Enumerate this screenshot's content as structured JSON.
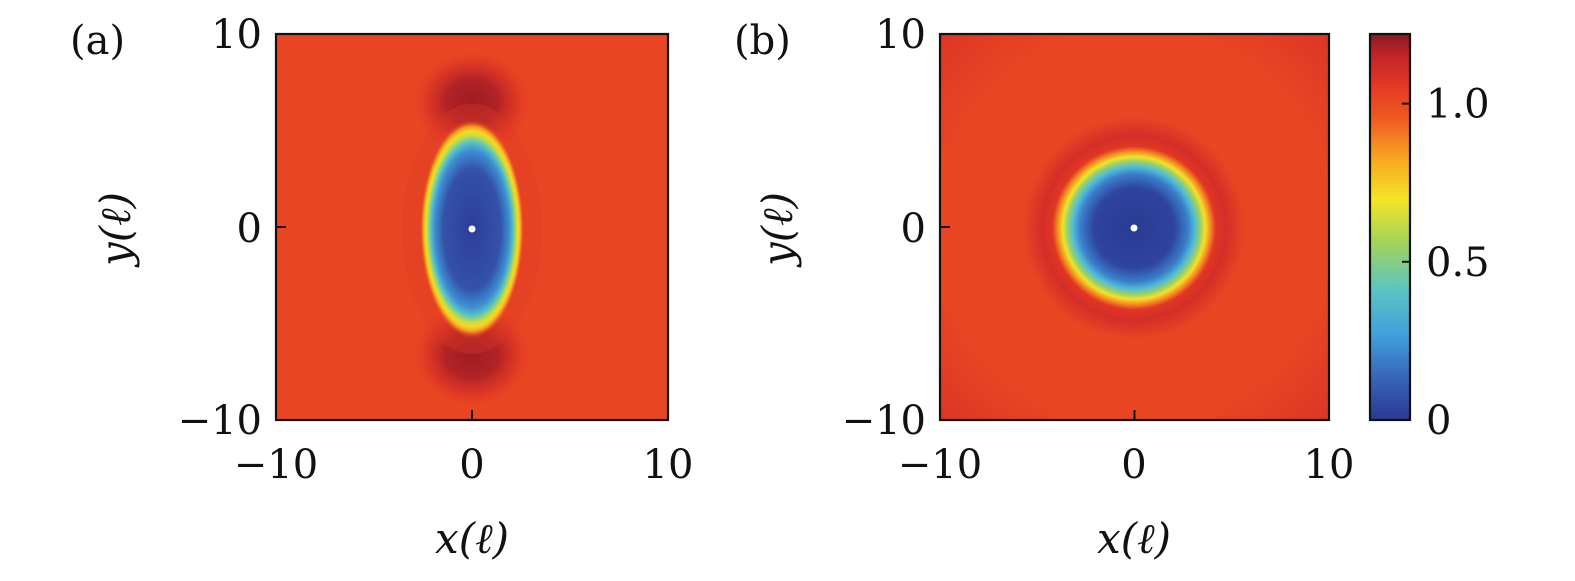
{
  "chart_data": [
    {
      "type": "heatmap",
      "panel_label": "(a)",
      "xlabel": "x(ℓ)",
      "ylabel": "y(ℓ)",
      "xlim": [
        -10,
        10
      ],
      "ylim": [
        -10,
        10
      ],
      "xticks": [
        -10,
        0,
        10
      ],
      "yticks": [
        -10,
        0,
        10
      ],
      "xtick_labels": [
        "−10",
        "0",
        "10"
      ],
      "ytick_labels": [
        "−10",
        "0",
        "10"
      ],
      "field": {
        "shape": "ellipse",
        "center": [
          0,
          0
        ],
        "semi_axis_x": 2.1,
        "semi_axis_y": 4.7,
        "core_value": 0.1,
        "background_value": 1.0,
        "peak_value": 1.22,
        "peak_centers": [
          [
            0,
            6.5
          ],
          [
            0,
            -6.5
          ]
        ]
      },
      "center_marker": {
        "x": 0,
        "y": 0,
        "color": "#ffffff"
      }
    },
    {
      "type": "heatmap",
      "panel_label": "(b)",
      "xlabel": "x(ℓ)",
      "ylabel": "y(ℓ)",
      "xlim": [
        -10,
        10
      ],
      "ylim": [
        -10,
        10
      ],
      "xticks": [
        -10,
        0,
        10
      ],
      "yticks": [
        -10,
        0,
        10
      ],
      "xtick_labels": [
        "−10",
        "0",
        "10"
      ],
      "ytick_labels": [
        "−10",
        "0",
        "10"
      ],
      "field": {
        "shape": "circle",
        "center": [
          0,
          0
        ],
        "radius": 3.3,
        "core_value": 0.1,
        "background_value": 1.02,
        "ring_value": 1.1,
        "ring_radius": 4.8,
        "corner_value": 1.08
      },
      "center_marker": {
        "x": 0,
        "y": 0,
        "color": "#ffffff"
      }
    }
  ],
  "colorbar": {
    "range": [
      0,
      1.22
    ],
    "ticks": [
      0,
      0.5,
      1.0
    ],
    "tick_labels": [
      "0",
      "0.5",
      "1.0"
    ],
    "colormap": [
      "#2a3a93",
      "#3760b6",
      "#3fa0dc",
      "#5cc6c1",
      "#a3d35a",
      "#f2e526",
      "#f7a521",
      "#ef5a22",
      "#e63a24",
      "#c3252a",
      "#8b1a22"
    ]
  }
}
